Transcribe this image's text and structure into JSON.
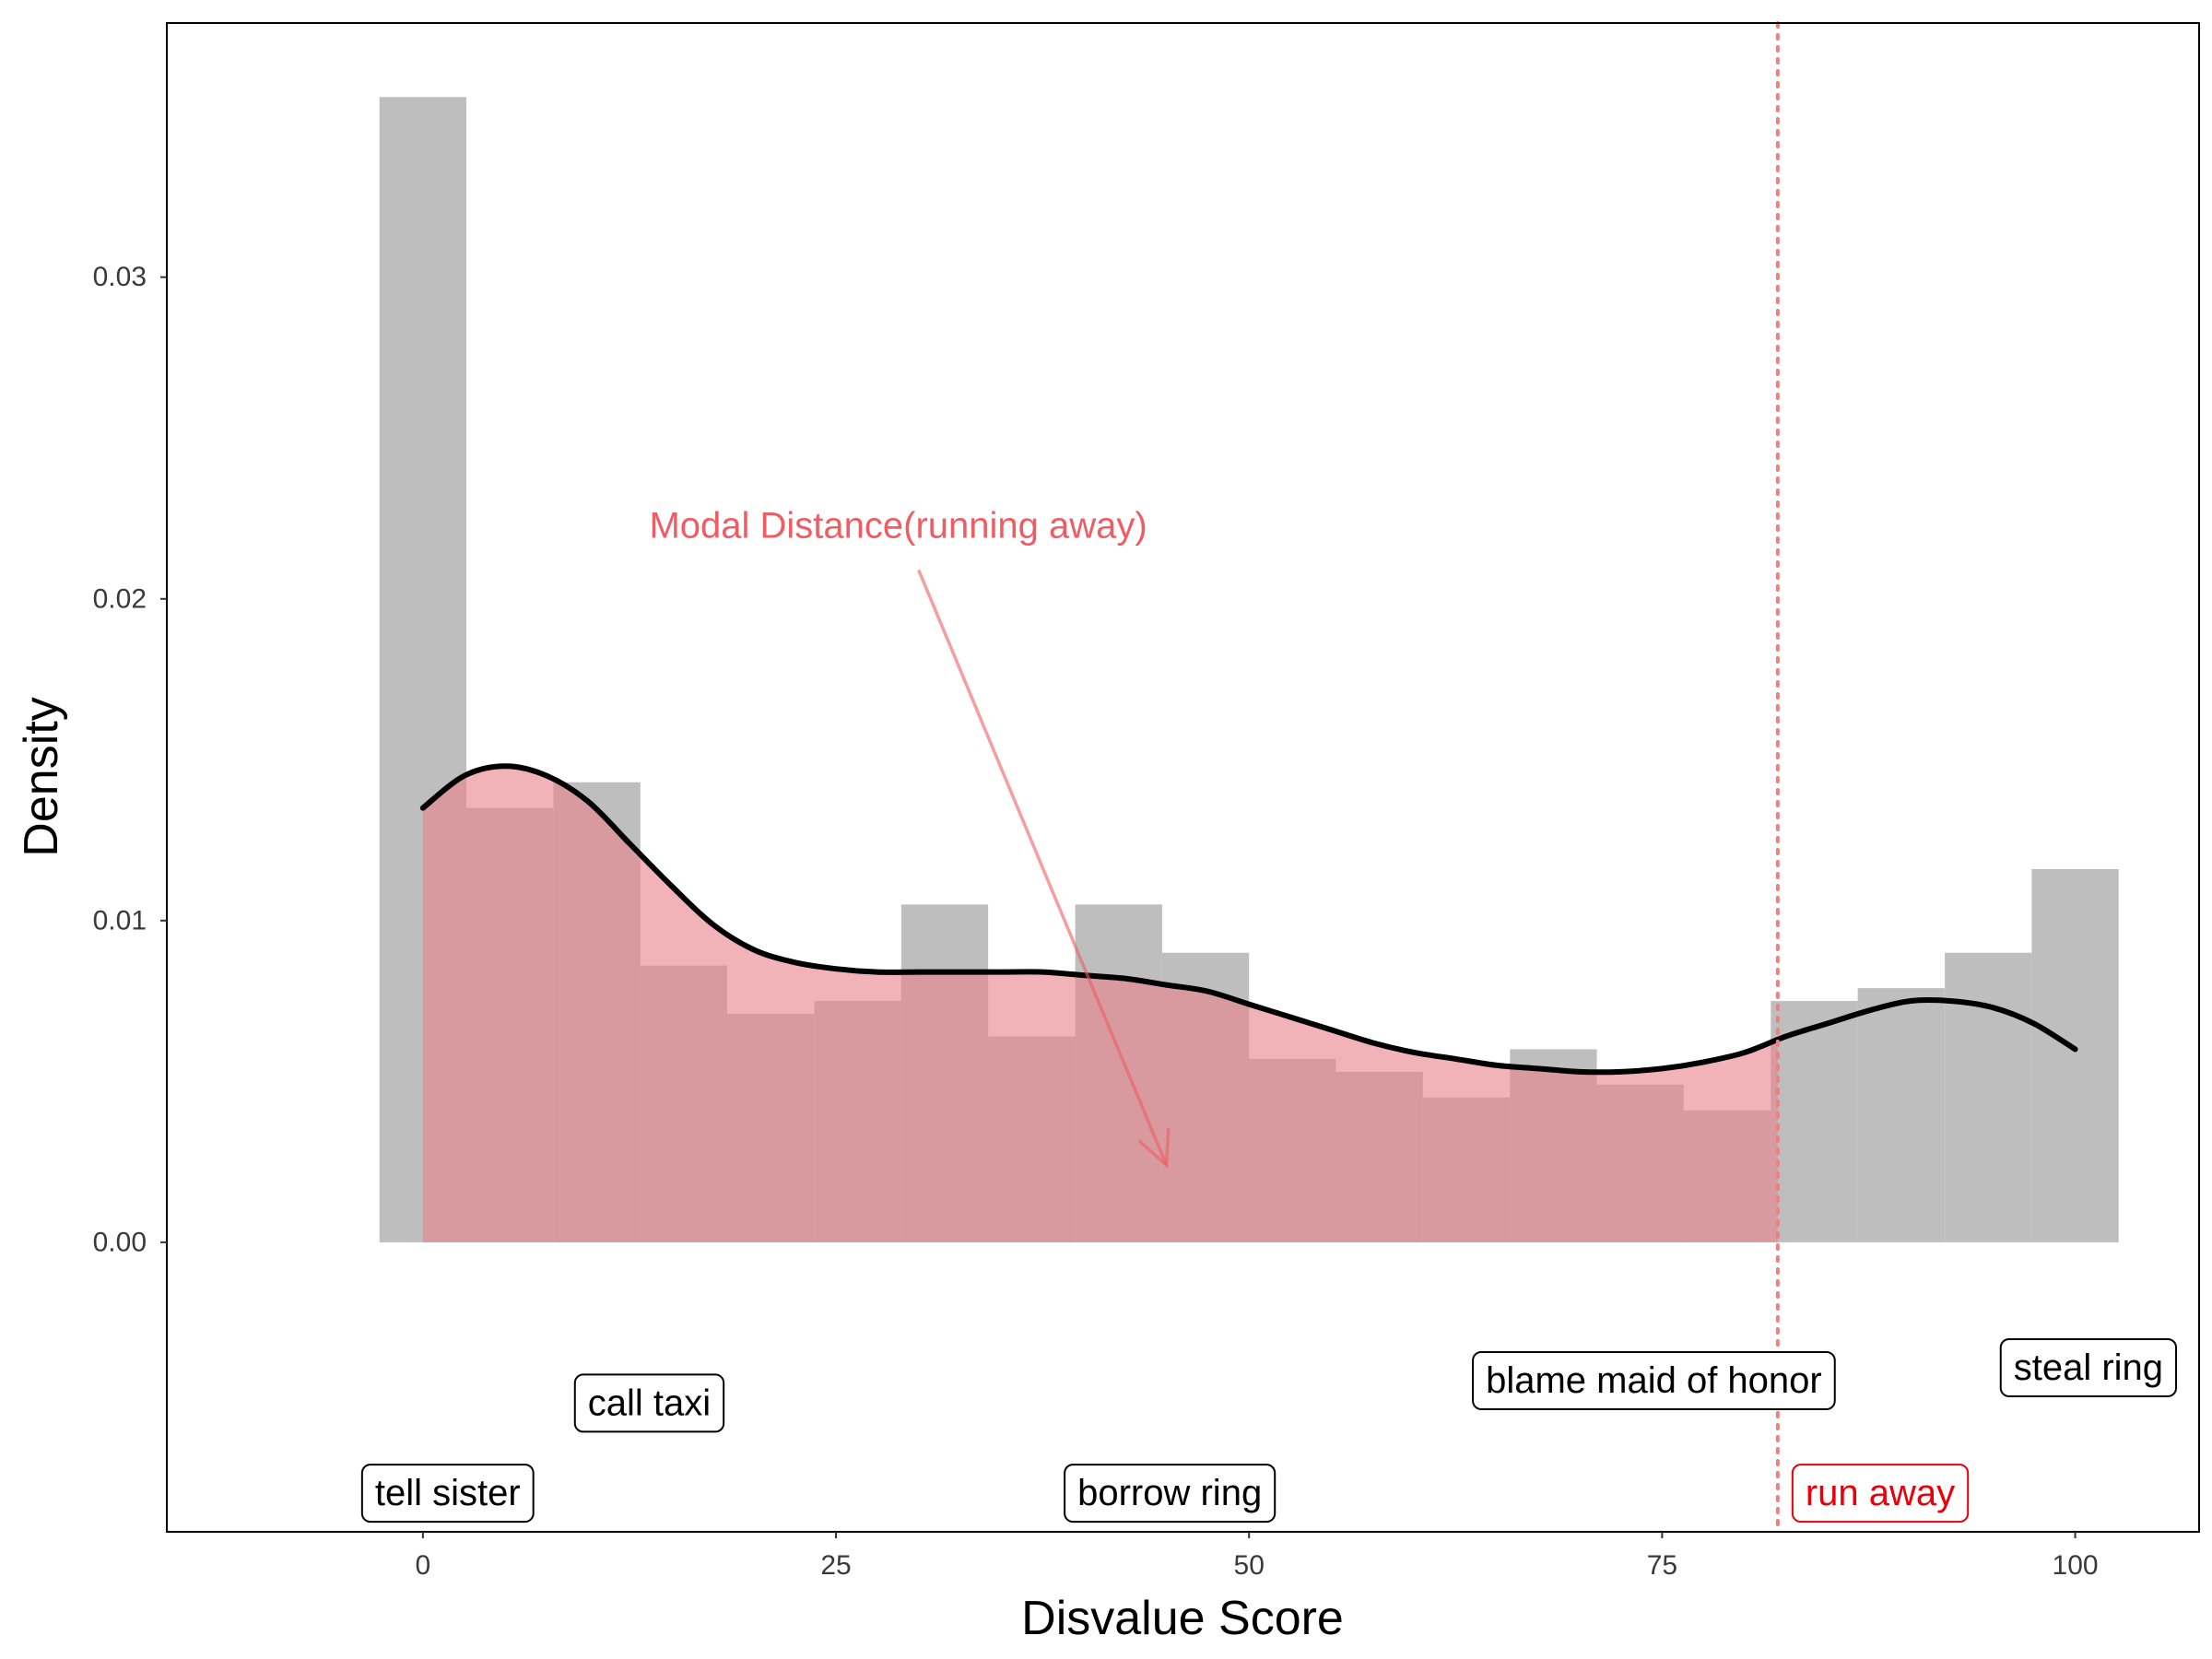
{
  "chart_data": {
    "type": "histogram",
    "title": "",
    "xlabel": "Disvalue Score",
    "ylabel": "Density",
    "xlim": [
      -15.5,
      107.5
    ],
    "ylim": [
      -0.009,
      0.0379
    ],
    "grid": false,
    "x_ticks": [
      0,
      25,
      50,
      75,
      100
    ],
    "x_tick_labels": [
      "0",
      "25",
      "50",
      "75",
      "100"
    ],
    "y_ticks": [
      0.0,
      0.01,
      0.02,
      0.03
    ],
    "y_tick_labels": [
      "0.00",
      "0.01",
      "0.02",
      "0.03"
    ],
    "colors": {
      "bar": "#bebebe",
      "shade": "#e8858a",
      "curve": "#000000",
      "vline": "#f08080",
      "annotation": "#ee5d63",
      "highlight": "#e8000b"
    },
    "histogram": {
      "bin_width": 5.26,
      "bin_centers": [
        0.0,
        5.26,
        10.53,
        15.79,
        21.05,
        26.32,
        31.58,
        36.84,
        42.11,
        47.37,
        52.63,
        57.89,
        63.16,
        68.42,
        73.68,
        78.95,
        84.21,
        89.47,
        94.74,
        100.0
      ],
      "density": [
        0.0356,
        0.0135,
        0.0143,
        0.0086,
        0.0071,
        0.0075,
        0.0105,
        0.0064,
        0.0105,
        0.009,
        0.0057,
        0.0053,
        0.0045,
        0.006,
        0.0049,
        0.0041,
        0.0075,
        0.0079,
        0.009,
        0.0116
      ]
    },
    "density_curve": {
      "x": [
        0,
        2.5,
        5,
        7.5,
        10,
        12.5,
        15,
        17.5,
        20,
        22.5,
        25,
        27.5,
        30,
        32.5,
        35,
        37.5,
        40,
        42.5,
        45,
        47.5,
        50,
        52.5,
        55,
        57.5,
        60,
        62.5,
        65,
        67.5,
        70,
        72.5,
        75,
        77.5,
        80,
        82.5,
        85,
        87.5,
        90,
        92.5,
        95,
        97.5,
        100
      ],
      "y": [
        0.0135,
        0.0145,
        0.0148,
        0.0145,
        0.0137,
        0.0124,
        0.0111,
        0.0099,
        0.0091,
        0.0087,
        0.0085,
        0.0084,
        0.0084,
        0.0084,
        0.0084,
        0.0084,
        0.0083,
        0.0082,
        0.008,
        0.0078,
        0.0074,
        0.007,
        0.0066,
        0.0062,
        0.0059,
        0.0057,
        0.0055,
        0.0054,
        0.0053,
        0.0053,
        0.0054,
        0.0056,
        0.0059,
        0.0064,
        0.0068,
        0.0072,
        0.0075,
        0.0075,
        0.0073,
        0.0068,
        0.006
      ]
    },
    "shaded_region": {
      "x_from": 0,
      "x_to": 82
    },
    "vertical_line": {
      "x": 82,
      "style": "dotted"
    },
    "annotation": {
      "text": "Modal Distance(running away)",
      "x": 13.7,
      "y": 0.0219,
      "arrow_from": [
        30,
        0.0209
      ],
      "arrow_to": [
        45,
        0.0024
      ]
    },
    "labels": [
      {
        "text": "tell sister",
        "x": 1.5,
        "y": -0.0078,
        "highlight": false
      },
      {
        "text": "call taxi",
        "x": 13.7,
        "y": -0.005,
        "highlight": false
      },
      {
        "text": "borrow ring",
        "x": 45.2,
        "y": -0.0078,
        "highlight": false
      },
      {
        "text": "blame maid of honor",
        "x": 74.5,
        "y": -0.0043,
        "highlight": false
      },
      {
        "text": "steal ring",
        "x": 100.8,
        "y": -0.0039,
        "highlight": false
      },
      {
        "text": "run away",
        "x": 88.2,
        "y": -0.0078,
        "highlight": true
      }
    ]
  }
}
